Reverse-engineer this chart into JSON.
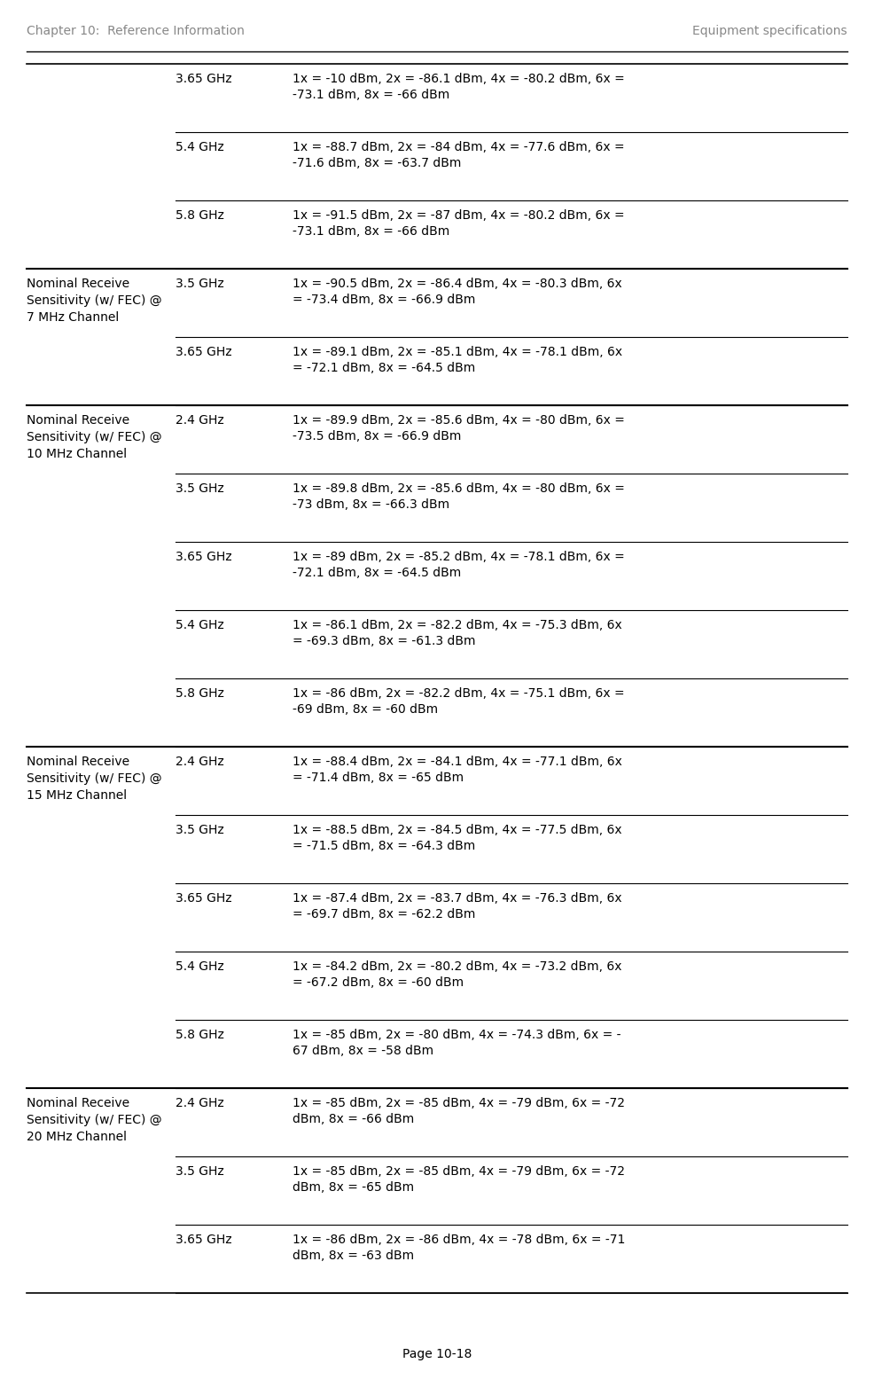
{
  "header_left": "Chapter 10:  Reference Information",
  "header_right": "Equipment specifications",
  "footer": "Page 10-18",
  "background_color": "#ffffff",
  "text_color": "#000000",
  "header_color": "#888888",
  "sections": [
    {
      "label": "",
      "rows": [
        {
          "freq": "3.65 GHz",
          "values": "1x = -10 dBm, 2x = -86.1 dBm, 4x = -80.2 dBm, 6x =\n-73.1 dBm, 8x = -66 dBm"
        },
        {
          "freq": "5.4 GHz",
          "values": "1x = -88.7 dBm, 2x = -84 dBm, 4x = -77.6 dBm, 6x =\n-71.6 dBm, 8x = -63.7 dBm"
        },
        {
          "freq": "5.8 GHz",
          "values": "1x = -91.5 dBm, 2x = -87 dBm, 4x = -80.2 dBm, 6x =\n-73.1 dBm, 8x = -66 dBm"
        }
      ]
    },
    {
      "label": "Nominal Receive\nSensitivity (w/ FEC) @\n7 MHz Channel",
      "rows": [
        {
          "freq": "3.5 GHz",
          "values": "1x = -90.5 dBm, 2x = -86.4 dBm, 4x = -80.3 dBm, 6x\n= -73.4 dBm, 8x = -66.9 dBm"
        },
        {
          "freq": "3.65 GHz",
          "values": "1x = -89.1 dBm, 2x = -85.1 dBm, 4x = -78.1 dBm, 6x\n= -72.1 dBm, 8x = -64.5 dBm"
        }
      ]
    },
    {
      "label": "Nominal Receive\nSensitivity (w/ FEC) @\n10 MHz Channel",
      "rows": [
        {
          "freq": "2.4 GHz",
          "values": "1x = -89.9 dBm, 2x = -85.6 dBm, 4x = -80 dBm, 6x =\n-73.5 dBm, 8x = -66.9 dBm"
        },
        {
          "freq": "3.5 GHz",
          "values": "1x = -89.8 dBm, 2x = -85.6 dBm, 4x = -80 dBm, 6x =\n-73 dBm, 8x = -66.3 dBm"
        },
        {
          "freq": "3.65 GHz",
          "values": "1x = -89 dBm, 2x = -85.2 dBm, 4x = -78.1 dBm, 6x =\n-72.1 dBm, 8x = -64.5 dBm"
        },
        {
          "freq": "5.4 GHz",
          "values": "1x = -86.1 dBm, 2x = -82.2 dBm, 4x = -75.3 dBm, 6x\n= -69.3 dBm, 8x = -61.3 dBm"
        },
        {
          "freq": "5.8 GHz",
          "values": "1x = -86 dBm, 2x = -82.2 dBm, 4x = -75.1 dBm, 6x =\n-69 dBm, 8x = -60 dBm"
        }
      ]
    },
    {
      "label": "Nominal Receive\nSensitivity (w/ FEC) @\n15 MHz Channel",
      "rows": [
        {
          "freq": "2.4 GHz",
          "values": "1x = -88.4 dBm, 2x = -84.1 dBm, 4x = -77.1 dBm, 6x\n= -71.4 dBm, 8x = -65 dBm"
        },
        {
          "freq": "3.5 GHz",
          "values": "1x = -88.5 dBm, 2x = -84.5 dBm, 4x = -77.5 dBm, 6x\n= -71.5 dBm, 8x = -64.3 dBm"
        },
        {
          "freq": "3.65 GHz",
          "values": "1x = -87.4 dBm, 2x = -83.7 dBm, 4x = -76.3 dBm, 6x\n= -69.7 dBm, 8x = -62.2 dBm"
        },
        {
          "freq": "5.4 GHz",
          "values": "1x = -84.2 dBm, 2x = -80.2 dBm, 4x = -73.2 dBm, 6x\n= -67.2 dBm, 8x = -60 dBm"
        },
        {
          "freq": "5.8 GHz",
          "values": "1x = -85 dBm, 2x = -80 dBm, 4x = -74.3 dBm, 6x = -\n67 dBm, 8x = -58 dBm"
        }
      ]
    },
    {
      "label": "Nominal Receive\nSensitivity (w/ FEC) @\n20 MHz Channel",
      "rows": [
        {
          "freq": "2.4 GHz",
          "values": "1x = -85 dBm, 2x = -85 dBm, 4x = -79 dBm, 6x = -72\ndBm, 8x = -66 dBm"
        },
        {
          "freq": "3.5 GHz",
          "values": "1x = -85 dBm, 2x = -85 dBm, 4x = -79 dBm, 6x = -72\ndBm, 8x = -65 dBm"
        },
        {
          "freq": "3.65 GHz",
          "values": "1x = -86 dBm, 2x = -86 dBm, 4x = -78 dBm, 6x = -71\ndBm, 8x = -63 dBm"
        }
      ]
    }
  ]
}
